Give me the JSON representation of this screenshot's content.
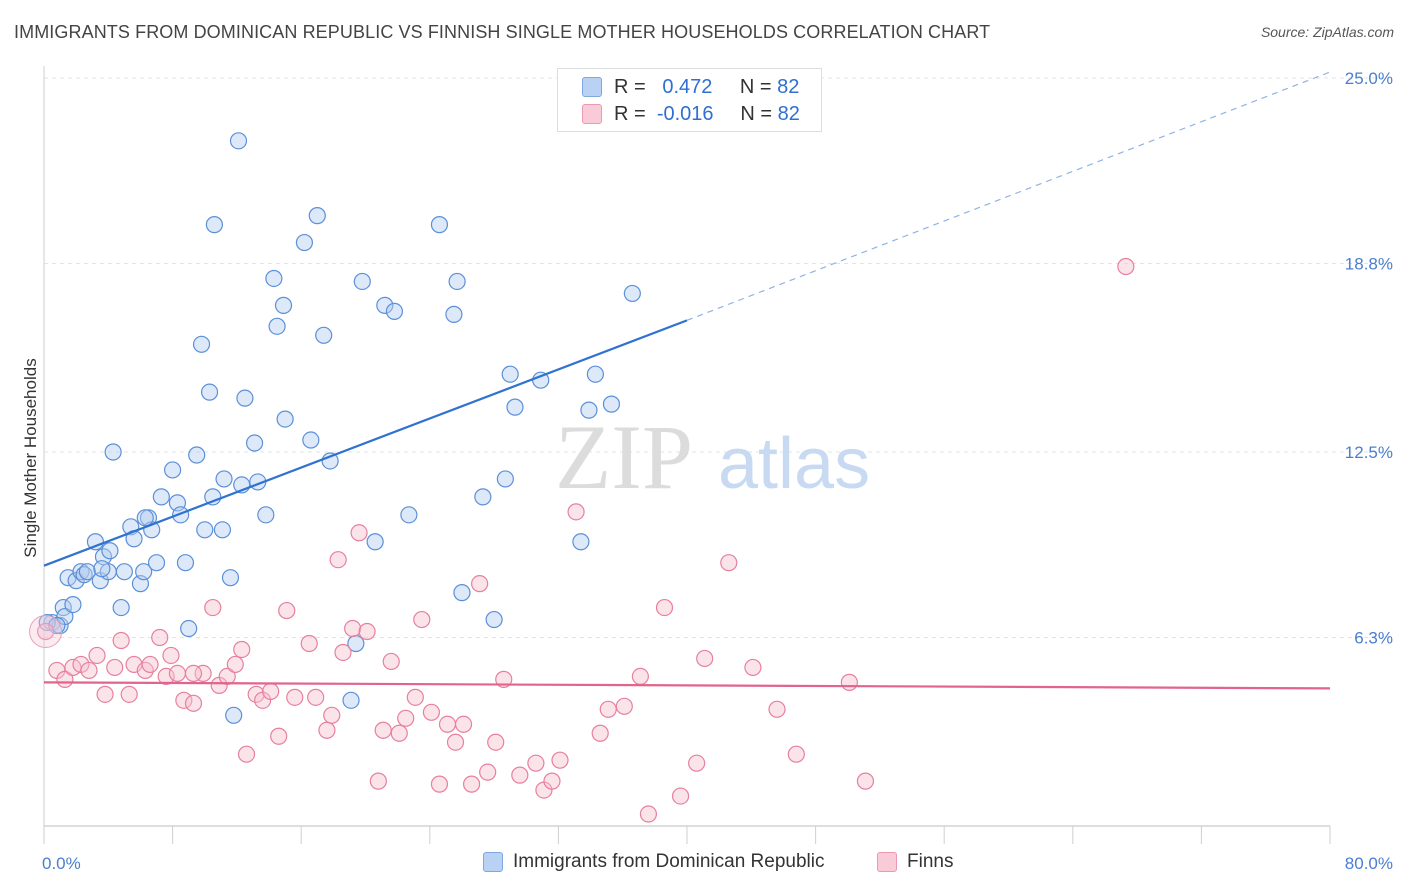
{
  "title": "IMMIGRANTS FROM DOMINICAN REPUBLIC VS FINNISH SINGLE MOTHER HOUSEHOLDS CORRELATION CHART",
  "source": "Source: ZipAtlas.com",
  "watermark": {
    "zip": "ZIP",
    "atlas": "atlas"
  },
  "legend": {
    "rows": [
      {
        "r_label": "R =",
        "r_value": "0.472",
        "n_label": "N =",
        "n_value": "82",
        "color": "#a9c8f0"
      },
      {
        "r_label": "R =",
        "r_value": "-0.016",
        "n_label": "N =",
        "n_value": "82",
        "color": "#f6b9cb"
      }
    ]
  },
  "bottom_legend": [
    {
      "label": "Immigrants from Dominican Republic",
      "color": "#a9c8f0"
    },
    {
      "label": "Finns",
      "color": "#f6b9cb"
    }
  ],
  "chart_data": {
    "type": "scatter",
    "title": "IMMIGRANTS FROM DOMINICAN REPUBLIC VS FINNISH SINGLE MOTHER HOUSEHOLDS CORRELATION CHART",
    "xlabel": "",
    "ylabel": "Single Mother Households",
    "xlim": [
      0,
      80
    ],
    "ylim": [
      0,
      25
    ],
    "x_tick_labels": [
      "0.0%",
      "80.0%"
    ],
    "y_tick_labels": [
      "6.3%",
      "12.5%",
      "18.8%",
      "25.0%"
    ],
    "y_tick_values": [
      6.3,
      12.5,
      18.8,
      25.0
    ],
    "grid": true,
    "legend_position": "top-center",
    "colors": {
      "blue": "#4a86d8",
      "blue_fill": "#b3cdf0",
      "pink": "#e0648e",
      "pink_fill": "#f7c0d0"
    },
    "series": [
      {
        "name": "Immigrants from Dominican Republic",
        "color": "#4a86d8",
        "trend": {
          "x": [
            0,
            40
          ],
          "y": [
            8.7,
            16.9
          ],
          "dashed_to": [
            80,
            25.2
          ]
        },
        "points": [
          [
            0.5,
            6.8
          ],
          [
            1,
            6.7
          ],
          [
            1.2,
            7.3
          ],
          [
            1.3,
            7.0
          ],
          [
            1.5,
            8.3
          ],
          [
            1.8,
            7.4
          ],
          [
            2,
            8.2
          ],
          [
            2.3,
            8.5
          ],
          [
            2.5,
            8.4
          ],
          [
            2.7,
            8.5
          ],
          [
            3.2,
            9.5
          ],
          [
            3.5,
            8.2
          ],
          [
            3.7,
            9.0
          ],
          [
            4,
            8.5
          ],
          [
            4.1,
            9.2
          ],
          [
            4.3,
            12.5
          ],
          [
            4.8,
            7.3
          ],
          [
            5,
            8.5
          ],
          [
            5.4,
            10.0
          ],
          [
            5.6,
            9.6
          ],
          [
            6,
            8.1
          ],
          [
            6.2,
            8.5
          ],
          [
            6.5,
            10.3
          ],
          [
            6.7,
            9.9
          ],
          [
            7,
            8.8
          ],
          [
            7.3,
            11.0
          ],
          [
            8,
            11.9
          ],
          [
            8.3,
            10.8
          ],
          [
            8.5,
            10.4
          ],
          [
            8.8,
            8.8
          ],
          [
            9,
            6.6
          ],
          [
            9.5,
            12.4
          ],
          [
            9.8,
            16.1
          ],
          [
            10,
            9.9
          ],
          [
            10.3,
            14.5
          ],
          [
            10.5,
            11.0
          ],
          [
            10.6,
            20.1
          ],
          [
            11.1,
            9.9
          ],
          [
            11.2,
            11.6
          ],
          [
            11.6,
            8.3
          ],
          [
            11.8,
            3.7
          ],
          [
            12.1,
            22.9
          ],
          [
            12.3,
            11.4
          ],
          [
            12.5,
            14.3
          ],
          [
            13.1,
            12.8
          ],
          [
            13.3,
            11.5
          ],
          [
            13.8,
            10.4
          ],
          [
            14.3,
            18.3
          ],
          [
            14.5,
            16.7
          ],
          [
            14.9,
            17.4
          ],
          [
            15,
            13.6
          ],
          [
            16.2,
            19.5
          ],
          [
            16.6,
            12.9
          ],
          [
            17,
            20.4
          ],
          [
            17.4,
            16.4
          ],
          [
            17.8,
            12.2
          ],
          [
            19.1,
            4.2
          ],
          [
            19.4,
            6.1
          ],
          [
            19.8,
            18.2
          ],
          [
            20.6,
            9.5
          ],
          [
            21.2,
            17.4
          ],
          [
            21.8,
            17.2
          ],
          [
            22.7,
            10.4
          ],
          [
            24.6,
            20.1
          ],
          [
            25.5,
            17.1
          ],
          [
            25.7,
            18.2
          ],
          [
            26,
            7.8
          ],
          [
            27.3,
            11.0
          ],
          [
            28,
            6.9
          ],
          [
            28.7,
            11.6
          ],
          [
            29,
            15.1
          ],
          [
            29.3,
            14.0
          ],
          [
            30.9,
            14.9
          ],
          [
            33.4,
            9.5
          ],
          [
            33.9,
            13.9
          ],
          [
            34.3,
            15.1
          ],
          [
            35.3,
            14.1
          ],
          [
            36.6,
            17.8
          ],
          [
            0.2,
            6.8
          ],
          [
            0.8,
            6.7
          ],
          [
            3.6,
            8.6
          ],
          [
            6.3,
            10.3
          ]
        ]
      },
      {
        "name": "Finns",
        "color": "#e0648e",
        "trend": {
          "x": [
            0,
            80
          ],
          "y": [
            4.8,
            4.6
          ]
        },
        "points": [
          [
            0.1,
            6.5
          ],
          [
            0.8,
            5.2
          ],
          [
            1.3,
            4.9
          ],
          [
            1.8,
            5.3
          ],
          [
            2.3,
            5.4
          ],
          [
            2.8,
            5.2
          ],
          [
            3.3,
            5.7
          ],
          [
            3.8,
            4.4
          ],
          [
            4.4,
            5.3
          ],
          [
            4.8,
            6.2
          ],
          [
            5.3,
            4.4
          ],
          [
            5.6,
            5.4
          ],
          [
            6.3,
            5.2
          ],
          [
            6.6,
            5.4
          ],
          [
            7.2,
            6.3
          ],
          [
            7.6,
            5.0
          ],
          [
            7.9,
            5.7
          ],
          [
            8.3,
            5.1
          ],
          [
            8.7,
            4.2
          ],
          [
            9.3,
            4.1
          ],
          [
            9.9,
            5.1
          ],
          [
            10.5,
            7.3
          ],
          [
            10.9,
            4.7
          ],
          [
            11.4,
            5.0
          ],
          [
            11.9,
            5.4
          ],
          [
            12.3,
            5.9
          ],
          [
            12.6,
            2.4
          ],
          [
            13.2,
            4.4
          ],
          [
            13.6,
            4.2
          ],
          [
            14.1,
            4.5
          ],
          [
            14.6,
            3.0
          ],
          [
            15.1,
            7.2
          ],
          [
            15.6,
            4.3
          ],
          [
            16.5,
            6.1
          ],
          [
            16.9,
            4.3
          ],
          [
            17.6,
            3.2
          ],
          [
            17.9,
            3.7
          ],
          [
            18.3,
            8.9
          ],
          [
            18.6,
            5.8
          ],
          [
            19.2,
            6.6
          ],
          [
            19.6,
            9.8
          ],
          [
            20.1,
            6.5
          ],
          [
            20.8,
            1.5
          ],
          [
            21.1,
            3.2
          ],
          [
            21.6,
            5.5
          ],
          [
            22.1,
            3.1
          ],
          [
            22.5,
            3.6
          ],
          [
            23.1,
            4.3
          ],
          [
            23.5,
            6.9
          ],
          [
            24.1,
            3.8
          ],
          [
            24.6,
            1.4
          ],
          [
            25.1,
            3.4
          ],
          [
            25.6,
            2.8
          ],
          [
            26.1,
            3.4
          ],
          [
            26.6,
            1.4
          ],
          [
            27.1,
            8.1
          ],
          [
            27.6,
            1.8
          ],
          [
            28.1,
            2.8
          ],
          [
            28.6,
            4.9
          ],
          [
            29.6,
            1.7
          ],
          [
            30.6,
            2.1
          ],
          [
            31.1,
            1.2
          ],
          [
            31.6,
            1.5
          ],
          [
            32.1,
            2.2
          ],
          [
            33.1,
            10.5
          ],
          [
            34.6,
            3.1
          ],
          [
            35.1,
            3.9
          ],
          [
            36.1,
            4.0
          ],
          [
            37.1,
            5.0
          ],
          [
            37.6,
            0.4
          ],
          [
            38.6,
            7.3
          ],
          [
            39.6,
            1.0
          ],
          [
            40.6,
            2.1
          ],
          [
            41.1,
            5.6
          ],
          [
            42.6,
            8.8
          ],
          [
            44.1,
            5.3
          ],
          [
            45.6,
            3.9
          ],
          [
            46.8,
            2.4
          ],
          [
            50.1,
            4.8
          ],
          [
            51.1,
            1.5
          ],
          [
            67.3,
            18.7
          ],
          [
            9.3,
            5.1
          ]
        ]
      }
    ]
  }
}
